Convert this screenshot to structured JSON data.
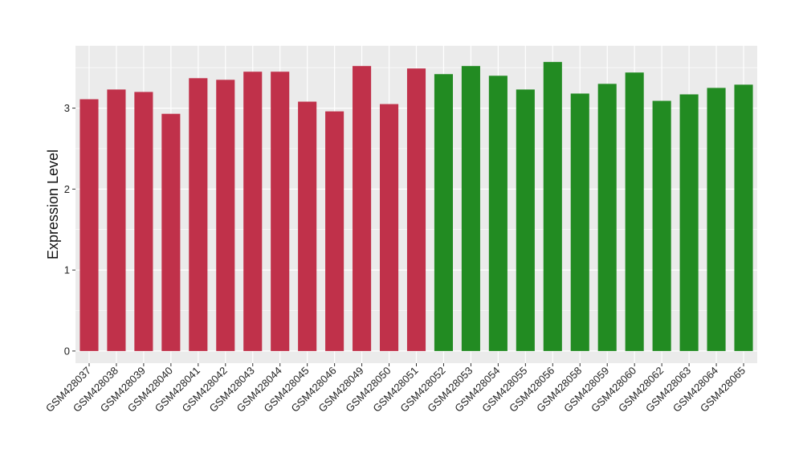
{
  "chart_data": {
    "type": "bar",
    "ylabel": "Expression Level",
    "xlabel": "",
    "ylim": [
      -0.15,
      3.77
    ],
    "yticks": [
      0,
      1,
      2,
      3
    ],
    "grid": true,
    "background": "#EBEBEB",
    "gridline_color": "#FFFFFF",
    "categories": [
      "GSM428037",
      "GSM428038",
      "GSM428039",
      "GSM428040",
      "GSM428041",
      "GSM428042",
      "GSM428043",
      "GSM428044",
      "GSM428045",
      "GSM428046",
      "GSM428049",
      "GSM428050",
      "GSM428051",
      "GSM428052",
      "GSM428053",
      "GSM428054",
      "GSM428055",
      "GSM428056",
      "GSM428058",
      "GSM428059",
      "GSM428060",
      "GSM428062",
      "GSM428063",
      "GSM428064",
      "GSM428065"
    ],
    "values": [
      3.11,
      3.23,
      3.2,
      2.93,
      3.37,
      3.35,
      3.45,
      3.45,
      3.08,
      2.96,
      3.52,
      3.05,
      3.49,
      3.42,
      3.52,
      3.4,
      3.23,
      3.57,
      3.18,
      3.3,
      3.44,
      3.09,
      3.17,
      3.25,
      3.29
    ],
    "groups": [
      "A",
      "A",
      "A",
      "A",
      "A",
      "A",
      "A",
      "A",
      "A",
      "A",
      "A",
      "A",
      "A",
      "B",
      "B",
      "B",
      "B",
      "B",
      "B",
      "B",
      "B",
      "B",
      "B",
      "B",
      "B"
    ],
    "group_colors": {
      "A": "#C0314A",
      "B": "#228B22"
    }
  }
}
